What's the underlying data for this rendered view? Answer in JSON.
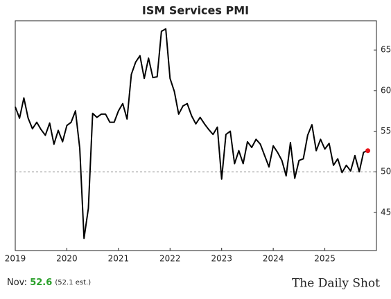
{
  "chart_data": {
    "type": "line",
    "title": "ISM Services PMI",
    "x": [
      2019,
      2019.083,
      2019.167,
      2019.25,
      2019.333,
      2019.417,
      2019.5,
      2019.583,
      2019.667,
      2019.75,
      2019.833,
      2019.917,
      2020,
      2020.083,
      2020.167,
      2020.25,
      2020.333,
      2020.417,
      2020.5,
      2020.583,
      2020.667,
      2020.75,
      2020.833,
      2020.917,
      2021,
      2021.083,
      2021.167,
      2021.25,
      2021.333,
      2021.417,
      2021.5,
      2021.583,
      2021.667,
      2021.75,
      2021.833,
      2021.917,
      2022,
      2022.083,
      2022.167,
      2022.25,
      2022.333,
      2022.417,
      2022.5,
      2022.583,
      2022.667,
      2022.75,
      2022.833,
      2022.917,
      2023,
      2023.083,
      2023.167,
      2023.25,
      2023.333,
      2023.417,
      2023.5,
      2023.583,
      2023.667,
      2023.75,
      2023.833,
      2023.917,
      2024,
      2024.083,
      2024.167,
      2024.25,
      2024.333,
      2024.417,
      2024.5,
      2024.583,
      2024.667,
      2024.75,
      2024.833,
      2024.917,
      2025,
      2025.083,
      2025.167,
      2025.25,
      2025.333,
      2025.417,
      2025.5,
      2025.583,
      2025.667,
      2025.75,
      2025.833
    ],
    "series": [
      {
        "name": "ISM Services PMI",
        "color": "#000000",
        "values": [
          58.0,
          56.6,
          59.1,
          56.6,
          55.3,
          56.1,
          55.2,
          54.5,
          56.0,
          53.4,
          55.1,
          53.7,
          55.7,
          56.1,
          57.5,
          52.9,
          41.8,
          45.5,
          57.2,
          56.7,
          57.1,
          57.1,
          56.1,
          56.1,
          57.5,
          58.4,
          56.5,
          62.0,
          63.5,
          64.3,
          61.5,
          64.0,
          61.6,
          61.7,
          67.3,
          67.6,
          61.5,
          59.9,
          57.1,
          58.1,
          58.4,
          56.9,
          55.9,
          56.7,
          55.9,
          55.2,
          54.6,
          55.5,
          49.1,
          54.6,
          55.0,
          51.0,
          52.6,
          51.0,
          53.7,
          53.0,
          54.0,
          53.4,
          52.0,
          50.6,
          53.2,
          52.4,
          51.4,
          49.5,
          53.6,
          49.2,
          51.4,
          51.6,
          54.5,
          55.8,
          52.6,
          54.0,
          52.8,
          53.5,
          50.8,
          51.6,
          49.9,
          50.8,
          50.1,
          52.0,
          50.0,
          52.4,
          52.6
        ]
      }
    ],
    "last_point_color": "#e8141a",
    "xlim": [
      2019,
      2026
    ],
    "xticks": [
      2019,
      2020,
      2021,
      2022,
      2023,
      2024,
      2025
    ],
    "ylim": [
      40.3,
      68.6
    ],
    "yticks": [
      45,
      50,
      55,
      60,
      65
    ],
    "reference_line": {
      "value": 50,
      "color": "#888888"
    },
    "footer": {
      "label": "Nov:",
      "value": 52.6,
      "value_color": "#2aa02a",
      "note": "(52.1 est.)"
    },
    "source": "The Daily Shot"
  }
}
